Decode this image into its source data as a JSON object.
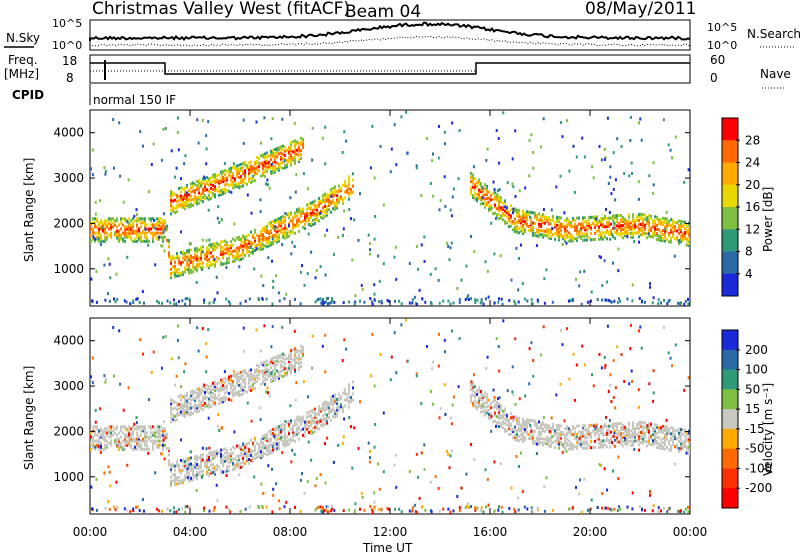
{
  "header": {
    "title": "Christmas Valley West (fitACF)",
    "beam": "Beam 04",
    "date": "08/May/2011"
  },
  "panels": {
    "nsky": {
      "label": "N.Sky",
      "right_label": "N.Search",
      "ticks_left": [
        "10^5",
        "10^0"
      ],
      "ticks_right": [
        "10^5",
        "10^0"
      ]
    },
    "freq": {
      "label_line1": "Freq.",
      "label_line2": "[MHz]",
      "ticks_left": [
        "18",
        "8"
      ],
      "ticks_right": [
        "60",
        "0"
      ],
      "right_label": "Nave"
    },
    "cpid": {
      "label": "CPID",
      "text": "normal 150 IF"
    }
  },
  "chart_data": [
    {
      "type": "heatmap",
      "name": "power",
      "ylabel": "Slant Range [km]",
      "yticks": [
        "4000",
        "3000",
        "2000",
        "1000"
      ],
      "colorbar_label": "Power [dB]",
      "colorbar_ticks": [
        "28",
        "24",
        "20",
        "16",
        "12",
        "8",
        "4"
      ],
      "colorbar_colors": [
        "#ff0000",
        "#ff6a00",
        "#ffaa00",
        "#e8d800",
        "#7fbf3f",
        "#2f9a7a",
        "#2a6aa8",
        "#1a2ad8"
      ],
      "features": [
        {
          "desc": "main band",
          "t": [
            0,
            3,
            3.2,
            6,
            9,
            10.5
          ],
          "km": [
            1900,
            1900,
            1100,
            1500,
            2300,
            2900
          ],
          "level": "high"
        },
        {
          "desc": "upper band",
          "t": [
            3.2,
            6,
            8.5
          ],
          "km": [
            2500,
            3100,
            3700
          ],
          "level": "high"
        },
        {
          "desc": "late band",
          "t": [
            15.2,
            17,
            19,
            22,
            24
          ],
          "km": [
            2900,
            2100,
            1900,
            2000,
            1800
          ],
          "level": "high"
        }
      ]
    },
    {
      "type": "heatmap",
      "name": "velocity",
      "ylabel": "Slant Range [km]",
      "yticks": [
        "4000",
        "3000",
        "2000",
        "1000"
      ],
      "colorbar_label": "Velocity [m s⁻¹]",
      "colorbar_ticks": [
        "200",
        "100",
        "50",
        "15",
        "-15",
        "-50",
        "-100",
        "-200"
      ],
      "colorbar_colors": [
        "#1a2ad8",
        "#2a6aa8",
        "#2f9a7a",
        "#7fbf3f",
        "#c8c8c0",
        "#ffaa00",
        "#ff6a00",
        "#ff3000",
        "#ff0000"
      ]
    }
  ],
  "xaxis": {
    "ticks": [
      "00:00",
      "04:00",
      "08:00",
      "12:00",
      "16:00",
      "20:00",
      "00:00"
    ],
    "label": "Time UT"
  }
}
